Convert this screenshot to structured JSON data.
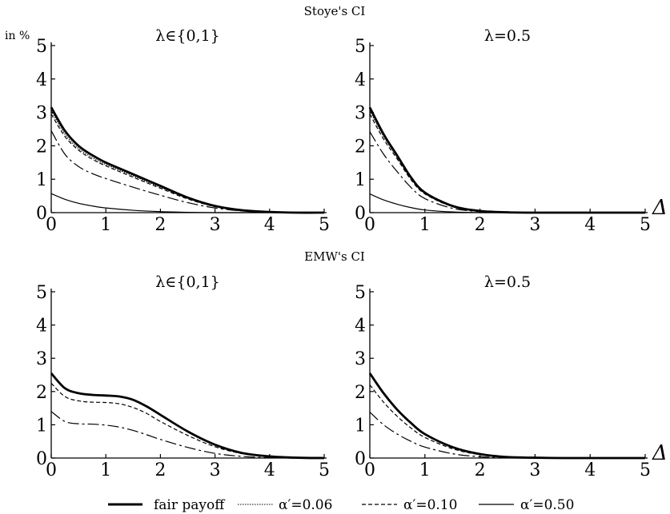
{
  "sections": {
    "top": "Stoye's CI",
    "bottom": "EMW's CI"
  },
  "y_unit": "in %",
  "x_axis_symbol": "Δ",
  "legend": [
    {
      "label": "fair payoff",
      "style": "thick"
    },
    {
      "label": "α′=0.06",
      "style": "dotted"
    },
    {
      "label": "α′=0.10",
      "style": "dashed"
    },
    {
      "label": "α′=0.50",
      "style": "thin"
    }
  ],
  "chart_data": [
    {
      "type": "line",
      "section": "Stoye's CI",
      "panel_label": "λ∈{0,1}",
      "xlim": [
        0,
        5
      ],
      "ylim": [
        0,
        5
      ],
      "xticks": [
        "0",
        "1",
        "2",
        "3",
        "4",
        "5"
      ],
      "yticks": [
        "0",
        "1",
        "2",
        "3",
        "4",
        "5"
      ],
      "x": [
        0,
        0.25,
        0.5,
        0.75,
        1,
        1.5,
        2,
        2.5,
        3,
        3.5,
        4,
        4.5,
        5
      ],
      "series": [
        {
          "name": "fair payoff",
          "values": [
            3.15,
            2.45,
            2.0,
            1.72,
            1.5,
            1.15,
            0.8,
            0.45,
            0.2,
            0.07,
            0.02,
            0.0,
            0.0
          ]
        },
        {
          "name": "α′=0.06",
          "values": [
            3.05,
            2.35,
            1.92,
            1.65,
            1.44,
            1.1,
            0.76,
            0.43,
            0.19,
            0.07,
            0.02,
            0.0,
            0.0
          ]
        },
        {
          "name": "α′=0.10",
          "values": [
            2.95,
            2.28,
            1.87,
            1.6,
            1.4,
            1.06,
            0.73,
            0.41,
            0.18,
            0.06,
            0.02,
            0.0,
            0.0
          ]
        },
        {
          "name": "α′=0.50",
          "values": [
            2.45,
            1.75,
            1.38,
            1.17,
            1.02,
            0.76,
            0.52,
            0.3,
            0.14,
            0.05,
            0.01,
            0.0,
            0.0
          ]
        },
        {
          "name": "",
          "values": [
            0.57,
            0.4,
            0.28,
            0.2,
            0.14,
            0.07,
            0.03,
            0.01,
            0.0,
            0.0,
            0.0,
            0.0,
            0.0
          ]
        }
      ]
    },
    {
      "type": "line",
      "section": "Stoye's CI",
      "panel_label": "λ=0.5",
      "xlim": [
        0,
        5
      ],
      "ylim": [
        0,
        5
      ],
      "xticks": [
        "0",
        "1",
        "2",
        "3",
        "4",
        "5"
      ],
      "yticks": [
        "0",
        "1",
        "2",
        "3",
        "4",
        "5"
      ],
      "x": [
        0,
        0.25,
        0.5,
        0.75,
        1,
        1.5,
        2,
        2.5,
        3,
        3.5,
        4,
        4.5,
        5
      ],
      "series": [
        {
          "name": "fair payoff",
          "values": [
            3.15,
            2.35,
            1.7,
            1.05,
            0.6,
            0.2,
            0.05,
            0.01,
            0.0,
            0.0,
            0.0,
            0.0,
            0.0
          ]
        },
        {
          "name": "α′=0.06",
          "values": [
            3.05,
            2.28,
            1.65,
            1.02,
            0.58,
            0.19,
            0.05,
            0.01,
            0.0,
            0.0,
            0.0,
            0.0,
            0.0
          ]
        },
        {
          "name": "α′=0.10",
          "values": [
            2.95,
            2.2,
            1.6,
            0.98,
            0.56,
            0.18,
            0.04,
            0.01,
            0.0,
            0.0,
            0.0,
            0.0,
            0.0
          ]
        },
        {
          "name": "α′=0.50",
          "values": [
            2.42,
            1.75,
            1.22,
            0.75,
            0.42,
            0.13,
            0.03,
            0.0,
            0.0,
            0.0,
            0.0,
            0.0,
            0.0
          ]
        },
        {
          "name": "",
          "values": [
            0.56,
            0.38,
            0.25,
            0.15,
            0.08,
            0.02,
            0.0,
            0.0,
            0.0,
            0.0,
            0.0,
            0.0,
            0.0
          ]
        }
      ]
    },
    {
      "type": "line",
      "section": "EMW's CI",
      "panel_label": "λ∈{0,1}",
      "xlim": [
        0,
        5
      ],
      "ylim": [
        0,
        5
      ],
      "xticks": [
        "0",
        "1",
        "2",
        "3",
        "4",
        "5"
      ],
      "yticks": [
        "0",
        "1",
        "2",
        "3",
        "4",
        "5"
      ],
      "x": [
        0,
        0.25,
        0.5,
        0.75,
        1,
        1.25,
        1.5,
        1.75,
        2,
        2.5,
        3,
        3.5,
        4,
        4.5,
        5
      ],
      "series": [
        {
          "name": "fair payoff",
          "values": [
            2.55,
            2.1,
            1.95,
            1.9,
            1.88,
            1.85,
            1.75,
            1.55,
            1.3,
            0.8,
            0.4,
            0.15,
            0.05,
            0.01,
            0.0
          ]
        },
        {
          "name": "α′=0.10",
          "values": [
            2.25,
            1.85,
            1.72,
            1.68,
            1.67,
            1.63,
            1.52,
            1.34,
            1.1,
            0.68,
            0.34,
            0.13,
            0.04,
            0.01,
            0.0
          ]
        },
        {
          "name": "α′=0.50",
          "values": [
            1.4,
            1.1,
            1.03,
            1.02,
            0.99,
            0.93,
            0.83,
            0.7,
            0.56,
            0.32,
            0.14,
            0.05,
            0.01,
            0.0,
            0.0
          ]
        }
      ]
    },
    {
      "type": "line",
      "section": "EMW's CI",
      "panel_label": "λ=0.5",
      "xlim": [
        0,
        5
      ],
      "ylim": [
        0,
        5
      ],
      "xticks": [
        "0",
        "1",
        "2",
        "3",
        "4",
        "5"
      ],
      "yticks": [
        "0",
        "1",
        "2",
        "3",
        "4",
        "5"
      ],
      "x": [
        0,
        0.25,
        0.5,
        0.75,
        1,
        1.5,
        2,
        2.5,
        3,
        3.5,
        4,
        4.5,
        5
      ],
      "series": [
        {
          "name": "fair payoff",
          "values": [
            2.55,
            1.95,
            1.45,
            1.05,
            0.72,
            0.33,
            0.12,
            0.03,
            0.01,
            0.0,
            0.0,
            0.0,
            0.0
          ]
        },
        {
          "name": "α′=0.10",
          "values": [
            2.2,
            1.68,
            1.25,
            0.9,
            0.62,
            0.28,
            0.1,
            0.03,
            0.01,
            0.0,
            0.0,
            0.0,
            0.0
          ]
        },
        {
          "name": "α′=0.50",
          "values": [
            1.38,
            1.0,
            0.72,
            0.5,
            0.33,
            0.13,
            0.04,
            0.01,
            0.0,
            0.0,
            0.0,
            0.0,
            0.0
          ]
        }
      ]
    }
  ]
}
